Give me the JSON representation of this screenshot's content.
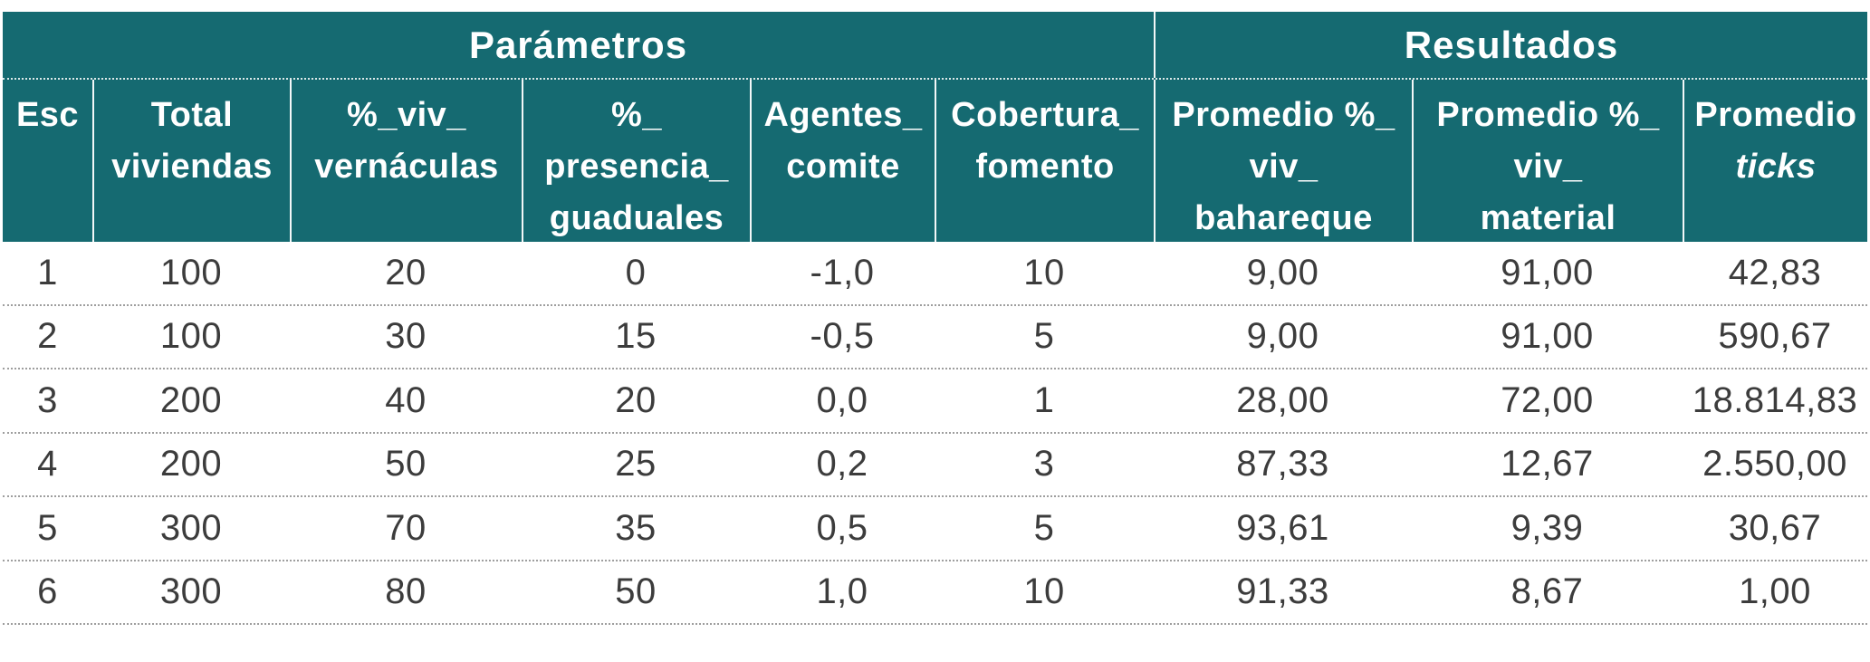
{
  "colors": {
    "header_bg": "#156A71",
    "header_text": "#FFFFFF",
    "body_text": "#3C3C3C",
    "row_divider": "#9E9E9E"
  },
  "table": {
    "group_headers": [
      {
        "label": "Parámetros",
        "span": 6
      },
      {
        "label": "Resultados",
        "span": 3
      }
    ],
    "columns": [
      {
        "id": "esc",
        "label": "Esc"
      },
      {
        "id": "total-viviendas",
        "label": "Total\nviviendas"
      },
      {
        "id": "pct-viv-vernaculas",
        "label": "%_viv_\nvernáculas"
      },
      {
        "id": "pct-presencia-guaduales",
        "label": "%_\npresencia_\nguaduales"
      },
      {
        "id": "agentes-comite",
        "label": "Agentes_\ncomite"
      },
      {
        "id": "cobertura-fomento",
        "label": "Cobertura_\nfomento"
      },
      {
        "id": "promedio-pct-viv-bahareque",
        "label": "Promedio %_\nviv_\nbahareque"
      },
      {
        "id": "promedio-pct-viv-material",
        "label": "Promedio %_\nviv_\nmaterial"
      },
      {
        "id": "promedio-ticks",
        "label": "Promedio",
        "italic_line": "ticks"
      }
    ],
    "rows": [
      [
        "1",
        "100",
        "20",
        "0",
        "-1,0",
        "10",
        "9,00",
        "91,00",
        "42,83"
      ],
      [
        "2",
        "100",
        "30",
        "15",
        "-0,5",
        "5",
        "9,00",
        "91,00",
        "590,67"
      ],
      [
        "3",
        "200",
        "40",
        "20",
        "0,0",
        "1",
        "28,00",
        "72,00",
        "18.814,83"
      ],
      [
        "4",
        "200",
        "50",
        "25",
        "0,2",
        "3",
        "87,33",
        "12,67",
        "2.550,00"
      ],
      [
        "5",
        "300",
        "70",
        "35",
        "0,5",
        "5",
        "93,61",
        "9,39",
        "30,67"
      ],
      [
        "6",
        "300",
        "80",
        "50",
        "1,0",
        "10",
        "91,33",
        "8,67",
        "1,00"
      ]
    ]
  },
  "chart_data": {
    "type": "table",
    "title": "",
    "group_headers": [
      {
        "label": "Parámetros",
        "columns": [
          "Esc",
          "Total viviendas",
          "%_viv_vernáculas",
          "%_presencia_guaduales",
          "Agentes_comite",
          "Cobertura_fomento"
        ]
      },
      {
        "label": "Resultados",
        "columns": [
          "Promedio %_viv_bahareque",
          "Promedio %_viv_material",
          "Promedio ticks"
        ]
      }
    ],
    "columns": [
      "Esc",
      "Total viviendas",
      "%_viv_vernáculas",
      "%_presencia_guaduales",
      "Agentes_comite",
      "Cobertura_fomento",
      "Promedio %_viv_bahareque",
      "Promedio %_viv_material",
      "Promedio ticks"
    ],
    "rows": [
      {
        "Esc": 1,
        "Total_viviendas": 100,
        "pct_viv_vernaculas": 20,
        "pct_presencia_guaduales": 0,
        "Agentes_comite": "-1,0",
        "Cobertura_fomento": 10,
        "Promedio_pct_viv_bahareque": "9,00",
        "Promedio_pct_viv_material": "91,00",
        "Promedio_ticks": "42,83"
      },
      {
        "Esc": 2,
        "Total_viviendas": 100,
        "pct_viv_vernaculas": 30,
        "pct_presencia_guaduales": 15,
        "Agentes_comite": "-0,5",
        "Cobertura_fomento": 5,
        "Promedio_pct_viv_bahareque": "9,00",
        "Promedio_pct_viv_material": "91,00",
        "Promedio_ticks": "590,67"
      },
      {
        "Esc": 3,
        "Total_viviendas": 200,
        "pct_viv_vernaculas": 40,
        "pct_presencia_guaduales": 20,
        "Agentes_comite": "0,0",
        "Cobertura_fomento": 1,
        "Promedio_pct_viv_bahareque": "28,00",
        "Promedio_pct_viv_material": "72,00",
        "Promedio_ticks": "18.814,83"
      },
      {
        "Esc": 4,
        "Total_viviendas": 200,
        "pct_viv_vernaculas": 50,
        "pct_presencia_guaduales": 25,
        "Agentes_comite": "0,2",
        "Cobertura_fomento": 3,
        "Promedio_pct_viv_bahareque": "87,33",
        "Promedio_pct_viv_material": "12,67",
        "Promedio_ticks": "2.550,00"
      },
      {
        "Esc": 5,
        "Total_viviendas": 300,
        "pct_viv_vernaculas": 70,
        "pct_presencia_guaduales": 35,
        "Agentes_comite": "0,5",
        "Cobertura_fomento": 5,
        "Promedio_pct_viv_bahareque": "93,61",
        "Promedio_pct_viv_material": "9,39",
        "Promedio_ticks": "30,67"
      },
      {
        "Esc": 6,
        "Total_viviendas": 300,
        "pct_viv_vernaculas": 80,
        "pct_presencia_guaduales": 50,
        "Agentes_comite": "1,0",
        "Cobertura_fomento": 10,
        "Promedio_pct_viv_bahareque": "91,33",
        "Promedio_pct_viv_material": "8,67",
        "Promedio_ticks": "1,00"
      }
    ],
    "layout": {
      "header_background": "#156A71",
      "header_text_color": "#FFFFFF",
      "row_separators": "dotted",
      "alignment": "center"
    }
  }
}
